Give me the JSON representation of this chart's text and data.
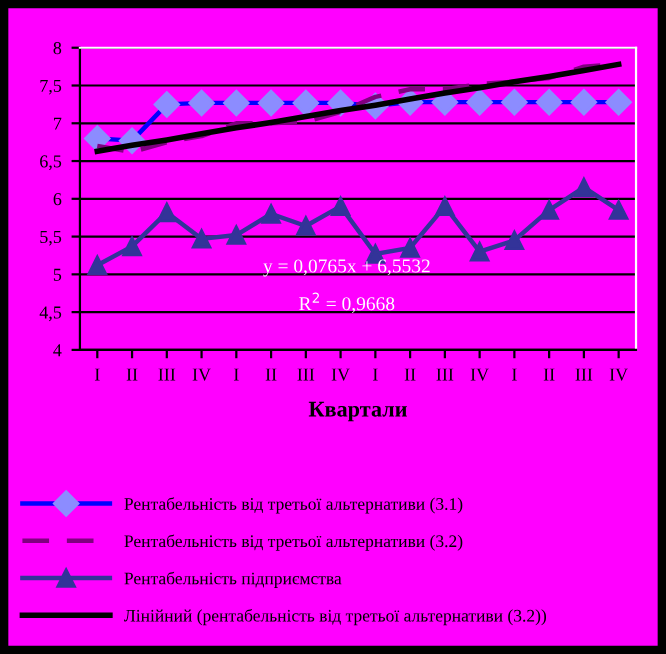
{
  "chart_data": {
    "type": "line",
    "xlabel": "Квартали",
    "categories": [
      "I",
      "II",
      "III",
      "IV",
      "I",
      "II",
      "III",
      "IV",
      "I",
      "II",
      "III",
      "IV",
      "I",
      "II",
      "III",
      "IV"
    ],
    "ylim": [
      4,
      8
    ],
    "yticks": [
      4,
      {
        "value": 4.5,
        "label": "4,5"
      },
      5,
      {
        "value": 5.5,
        "label": "5,5"
      },
      6,
      {
        "value": 6.5,
        "label": "6,5"
      },
      7,
      {
        "value": 7.5,
        "label": "7,5"
      },
      8
    ],
    "grid": "y",
    "legend": "bottom",
    "series": [
      {
        "name": "Рентабельність від третьої альтернативи (3.1)",
        "color": "#0000ff",
        "marker": "diamond",
        "line_style": "solid",
        "values": [
          6.8,
          6.77,
          7.25,
          7.27,
          7.27,
          7.27,
          7.27,
          7.27,
          7.23,
          7.28,
          7.28,
          7.28,
          7.28,
          7.28,
          7.28,
          7.28
        ]
      },
      {
        "name": "Рентабельність від третьої альтернативи (3.2)",
        "color": "#800080",
        "marker": "none",
        "line_style": "dashed",
        "values": [
          6.7,
          6.62,
          6.75,
          6.83,
          7.0,
          7.0,
          7.02,
          7.15,
          7.35,
          7.45,
          7.45,
          7.52,
          7.55,
          7.6,
          7.75,
          7.78
        ]
      },
      {
        "name": "Рентабельність підприємства",
        "color": "#333399",
        "marker": "triangle",
        "line_style": "solid",
        "values": [
          5.12,
          5.37,
          5.82,
          5.47,
          5.52,
          5.8,
          5.64,
          5.9,
          5.27,
          5.35,
          5.9,
          5.3,
          5.45,
          5.85,
          6.15,
          5.85
        ]
      },
      {
        "name": "Лінійний (рентабельність від третьої альтернативи (3.2))",
        "color": "#000000",
        "marker": "none",
        "line_style": "solid",
        "values": [
          6.63,
          6.71,
          6.78,
          6.86,
          6.94,
          7.01,
          7.09,
          7.17,
          7.24,
          7.32,
          7.4,
          7.47,
          7.55,
          7.62,
          7.7,
          7.78
        ]
      }
    ],
    "annotations": [
      "y = 0,0765x + 6,5532",
      "R$^{2}$ = 0,9668"
    ]
  }
}
